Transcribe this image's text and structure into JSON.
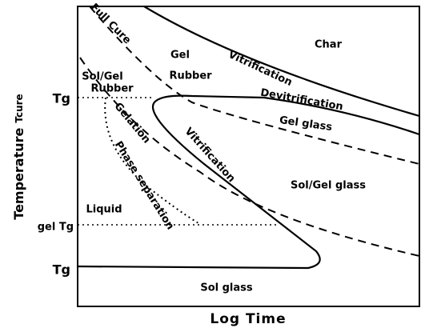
{
  "axes": {
    "y_label": "Temperature",
    "y_label_sub": "Tcure",
    "x_label": "Log Time",
    "y_levels": [
      "Tg",
      "gel Tg",
      "Tg"
    ]
  },
  "regions": [
    "Char",
    "Vitrification",
    "Devitrification",
    "Gel glass",
    "Gel",
    "Rubber",
    "Sol/Gel",
    "Rubber",
    "Full Cure",
    "Gelation",
    "Vitrification",
    "Phase separation",
    "Sol/Gel glass",
    "Liquid",
    "Sol glass"
  ]
}
